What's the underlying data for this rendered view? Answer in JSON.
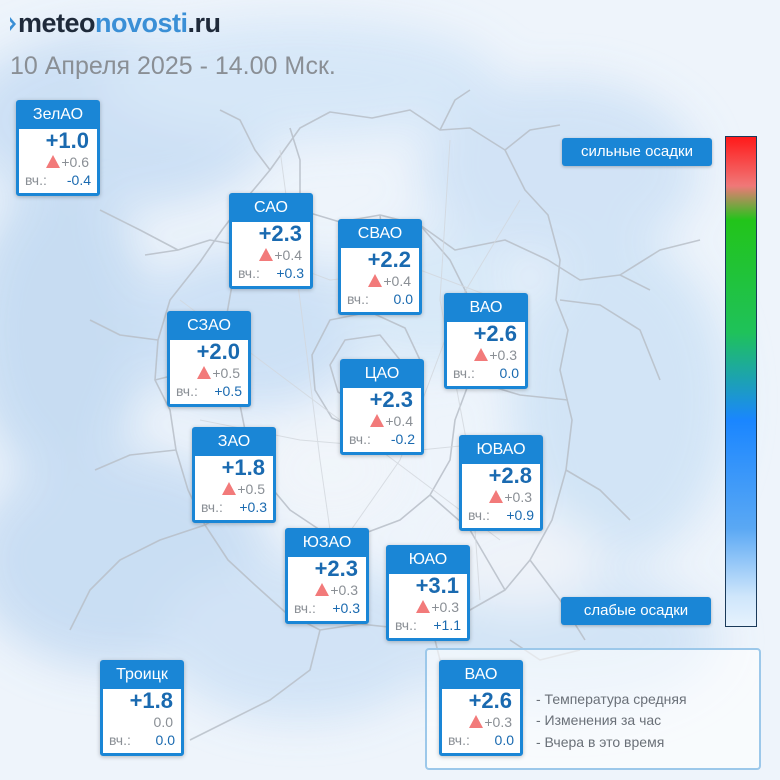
{
  "header": {
    "logo_part1": "meteo",
    "logo_part2": "novosti",
    "logo_part3": ".ru",
    "date": "10 Апреля 2025 - 14.00 Мск."
  },
  "icons": {
    "change": "triangle-up-icon",
    "logo_mark": "chevron-mark-icon"
  },
  "colors": {
    "card_accent": "#1a86d6",
    "temp_text": "#1a6ab0",
    "rise_triangle": "#f27a7a"
  },
  "districts": [
    {
      "name": "ЗелАО",
      "temp": "+1.0",
      "change": "+0.6",
      "rising": true,
      "yest_label": "вч.:",
      "yesterday": "-0.4"
    },
    {
      "name": "САО",
      "temp": "+2.3",
      "change": "+0.4",
      "rising": true,
      "yest_label": "вч.:",
      "yesterday": "+0.3"
    },
    {
      "name": "СВАО",
      "temp": "+2.2",
      "change": "+0.4",
      "rising": true,
      "yest_label": "вч.:",
      "yesterday": "0.0"
    },
    {
      "name": "ВАО",
      "temp": "+2.6",
      "change": "+0.3",
      "rising": true,
      "yest_label": "вч.:",
      "yesterday": "0.0"
    },
    {
      "name": "СЗАО",
      "temp": "+2.0",
      "change": "+0.5",
      "rising": true,
      "yest_label": "вч.:",
      "yesterday": "+0.5"
    },
    {
      "name": "ЦАО",
      "temp": "+2.3",
      "change": "+0.4",
      "rising": true,
      "yest_label": "вч.:",
      "yesterday": "-0.2"
    },
    {
      "name": "ЗАО",
      "temp": "+1.8",
      "change": "+0.5",
      "rising": true,
      "yest_label": "вч.:",
      "yesterday": "+0.3"
    },
    {
      "name": "ЮВАО",
      "temp": "+2.8",
      "change": "+0.3",
      "rising": true,
      "yest_label": "вч.:",
      "yesterday": "+0.9"
    },
    {
      "name": "ЮЗАО",
      "temp": "+2.3",
      "change": "+0.3",
      "rising": true,
      "yest_label": "вч.:",
      "yesterday": "+0.3"
    },
    {
      "name": "ЮАО",
      "temp": "+3.1",
      "change": "+0.3",
      "rising": true,
      "yest_label": "вч.:",
      "yesterday": "+1.1"
    },
    {
      "name": "Троицк",
      "temp": "+1.8",
      "change": "0.0",
      "rising": false,
      "yest_label": "вч.:",
      "yesterday": "0.0"
    }
  ],
  "precip_scale": {
    "high_label": "сильные осадки",
    "low_label": "слабые осадки"
  },
  "legend": {
    "sample": {
      "name": "ВАО",
      "temp": "+2.6",
      "change": "+0.3",
      "rising": true,
      "yest_label": "вч.:",
      "yesterday": "0.0"
    },
    "line1": "- Температура средняя",
    "line2": "- Изменения за час",
    "line3": "- Вчера в это время"
  }
}
